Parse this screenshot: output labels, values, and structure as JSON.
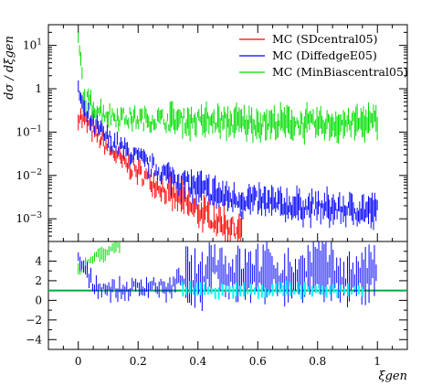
{
  "chart_data": [
    {
      "type": "scatter",
      "panel": "top",
      "ylabel": "dσ / dξgen",
      "yscale": "log",
      "xlim": [
        -0.1,
        1.1
      ],
      "ylim": [
        0.0003,
        30
      ],
      "y_ticks": [
        {
          "value": 0.001,
          "base": "10",
          "exp": "−3"
        },
        {
          "value": 0.01,
          "base": "10",
          "exp": "−2"
        },
        {
          "value": 0.1,
          "base": "10",
          "exp": "−1"
        },
        {
          "value": 1,
          "base": "1",
          "exp": ""
        },
        {
          "value": 10,
          "base": "10",
          "exp": "1"
        }
      ],
      "legend_position": "top-right",
      "series": [
        {
          "name": "MC (SDcentral05)",
          "color": "#ff0000",
          "x": [
            0.0,
            0.02,
            0.05,
            0.1,
            0.15,
            0.2,
            0.25,
            0.3,
            0.35,
            0.4,
            0.45,
            0.5,
            0.55
          ],
          "y": [
            0.25,
            0.18,
            0.1,
            0.045,
            0.02,
            0.012,
            0.007,
            0.004,
            0.0025,
            0.0015,
            0.001,
            0.0007,
            0.0005
          ]
        },
        {
          "name": "MC (DiffedgeE05)",
          "color": "#0000ff",
          "x": [
            0.0,
            0.02,
            0.05,
            0.1,
            0.15,
            0.2,
            0.25,
            0.3,
            0.35,
            0.4,
            0.5,
            0.6,
            0.7,
            0.8,
            0.9,
            1.0
          ],
          "y": [
            1.0,
            0.3,
            0.15,
            0.07,
            0.04,
            0.025,
            0.015,
            0.01,
            0.007,
            0.005,
            0.003,
            0.0025,
            0.002,
            0.0018,
            0.0016,
            0.0015
          ]
        },
        {
          "name": "MC (MinBiascentral05)",
          "color": "#00dd00",
          "x": [
            0.0,
            0.02,
            0.05,
            0.1,
            0.15,
            0.2,
            0.3,
            0.4,
            0.5,
            0.6,
            0.7,
            0.8,
            0.9,
            1.0
          ],
          "y": [
            15,
            0.6,
            0.4,
            0.25,
            0.22,
            0.2,
            0.19,
            0.18,
            0.17,
            0.16,
            0.16,
            0.15,
            0.16,
            0.17
          ]
        }
      ]
    },
    {
      "type": "scatter",
      "panel": "bottom",
      "xlabel": "ξgen",
      "xlim": [
        -0.1,
        1.1
      ],
      "ylim": [
        -5,
        6
      ],
      "x_ticks": [
        {
          "value": 0,
          "label": "0"
        },
        {
          "value": 0.2,
          "label": "0.2"
        },
        {
          "value": 0.4,
          "label": "0.4"
        },
        {
          "value": 0.6,
          "label": "0.6"
        },
        {
          "value": 0.8,
          "label": "0.8"
        },
        {
          "value": 1,
          "label": "1"
        }
      ],
      "y_ticks": [
        {
          "value": -4,
          "label": "−4"
        },
        {
          "value": -2,
          "label": "−2"
        },
        {
          "value": 0,
          "label": "0"
        },
        {
          "value": 2,
          "label": "2"
        },
        {
          "value": 4,
          "label": "4"
        }
      ],
      "reference_line": {
        "y": 1,
        "color": "#00aa44"
      },
      "series": [
        {
          "color": "#00dd00",
          "x": [
            0.0,
            0.03,
            0.06,
            0.1,
            0.14
          ],
          "y": [
            3.0,
            3.8,
            4.5,
            5.0,
            5.5
          ]
        },
        {
          "color": "#0000ff",
          "x": [
            0.0,
            0.05,
            0.1,
            0.15,
            0.2,
            0.25,
            0.3,
            0.35,
            0.4,
            0.45,
            0.5,
            0.6,
            0.7,
            0.8,
            0.9,
            1.0
          ],
          "y": [
            4.2,
            1.6,
            1.2,
            1.0,
            1.3,
            1.6,
            1.0,
            2.5,
            1.5,
            4.0,
            2.5,
            3.0,
            2.0,
            3.5,
            2.0,
            3.0
          ]
        },
        {
          "color": "#00ffff",
          "x": [
            0.35,
            0.4,
            0.45,
            0.5,
            0.55,
            0.6,
            0.7,
            0.8,
            0.9,
            0.95
          ],
          "y": [
            1.0,
            1.2,
            0.8,
            1.1,
            0.9,
            1.0,
            1.1,
            0.9,
            1.0,
            1.1
          ]
        }
      ]
    }
  ]
}
